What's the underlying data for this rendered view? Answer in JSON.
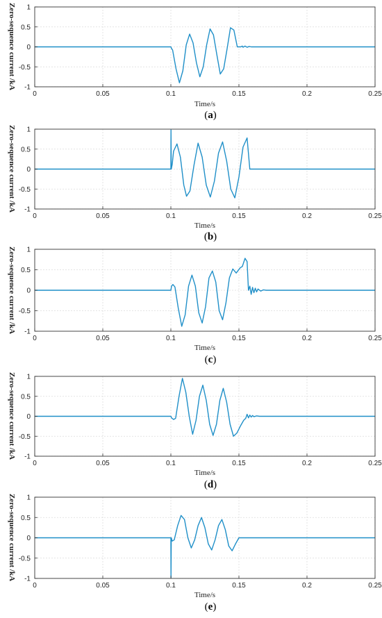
{
  "chart_data": [
    {
      "type": "line",
      "caption_letter": "a",
      "xlabel": "Time/s",
      "ylabel": "Zero-sequence current /kA",
      "xlim": [
        0,
        0.25
      ],
      "ylim": [
        -1,
        1
      ],
      "xticks": [
        "0",
        "0.05",
        "0.1",
        "0.15",
        "0.2",
        "0.25"
      ],
      "yticks": [
        "-1",
        "-0.5",
        "0",
        "0.5",
        "1"
      ],
      "grid": true,
      "color": "#1f8fc8",
      "series": [
        {
          "x": [
            0,
            0.1,
            0.1005,
            0.1013,
            0.1038,
            0.1063,
            0.1088,
            0.1113,
            0.1138,
            0.1163,
            0.1188,
            0.1213,
            0.1238,
            0.1263,
            0.1288,
            0.1313,
            0.1338,
            0.1363,
            0.1388,
            0.1413,
            0.1438,
            0.1463,
            0.1488,
            0.1513,
            0.1525,
            0.153,
            0.1545,
            0.156,
            0.1575,
            0.159,
            0.161,
            0.25
          ],
          "y": [
            0,
            0,
            -0.04,
            -0.08,
            -0.55,
            -0.9,
            -0.6,
            0.05,
            0.32,
            0.1,
            -0.4,
            -0.75,
            -0.5,
            0.05,
            0.45,
            0.3,
            -0.2,
            -0.68,
            -0.55,
            -0.05,
            0.48,
            0.42,
            0.0,
            0.0,
            0.02,
            -0.01,
            0.02,
            -0.01,
            0.01,
            0.0,
            0.0,
            0
          ]
        }
      ]
    },
    {
      "type": "line",
      "caption_letter": "b",
      "xlabel": "Time/s",
      "ylabel": "Zero-sequence current /kA",
      "xlim": [
        0,
        0.25
      ],
      "ylim": [
        -1,
        1
      ],
      "xticks": [
        "0",
        "0.05",
        "0.1",
        "0.15",
        "0.2",
        "0.25"
      ],
      "yticks": [
        "-1",
        "-0.5",
        "0",
        "0.5",
        "1"
      ],
      "grid": true,
      "color": "#1f8fc8",
      "series": [
        {
          "x": [
            0,
            0.1,
            0.1001,
            0.1003,
            0.101,
            0.102,
            0.1045,
            0.107,
            0.1095,
            0.1115,
            0.114,
            0.117,
            0.12,
            0.123,
            0.126,
            0.129,
            0.132,
            0.135,
            0.138,
            0.141,
            0.144,
            0.147,
            0.15,
            0.153,
            0.156,
            0.158,
            0.25
          ],
          "y": [
            0,
            0,
            0.98,
            0.0,
            0.12,
            0.45,
            0.63,
            0.3,
            -0.4,
            -0.68,
            -0.55,
            0.1,
            0.65,
            0.3,
            -0.4,
            -0.7,
            -0.3,
            0.4,
            0.68,
            0.2,
            -0.5,
            -0.72,
            -0.2,
            0.55,
            0.78,
            0.0,
            0
          ]
        }
      ]
    },
    {
      "type": "line",
      "caption_letter": "c",
      "xlabel": "Time/s",
      "ylabel": "Zero-sequence current /kA",
      "xlim": [
        0,
        0.25
      ],
      "ylim": [
        -1,
        1
      ],
      "xticks": [
        "0",
        "0.05",
        "0.1",
        "0.15",
        "0.2",
        "0.25"
      ],
      "yticks": [
        "-1",
        "-0.5",
        "0",
        "0.5",
        "1"
      ],
      "grid": true,
      "color": "#1f8fc8",
      "series": [
        {
          "x": [
            0,
            0.1,
            0.1005,
            0.1015,
            0.103,
            0.1055,
            0.108,
            0.1105,
            0.113,
            0.1155,
            0.118,
            0.1205,
            0.123,
            0.1255,
            0.128,
            0.1305,
            0.133,
            0.1355,
            0.138,
            0.1405,
            0.143,
            0.1455,
            0.148,
            0.151,
            0.1525,
            0.1545,
            0.156,
            0.157,
            0.158,
            0.159,
            0.16,
            0.161,
            0.162,
            0.163,
            0.164,
            0.166,
            0.168,
            0.17,
            0.25
          ],
          "y": [
            0,
            0,
            0.1,
            0.14,
            0.08,
            -0.45,
            -0.88,
            -0.6,
            0.1,
            0.37,
            0.1,
            -0.55,
            -0.8,
            -0.4,
            0.3,
            0.47,
            0.2,
            -0.5,
            -0.72,
            -0.3,
            0.3,
            0.52,
            0.42,
            0.55,
            0.58,
            0.78,
            0.7,
            0.0,
            0.1,
            -0.1,
            0.07,
            -0.06,
            0.05,
            -0.04,
            0.03,
            -0.02,
            0.01,
            0.0,
            0
          ]
        }
      ]
    },
    {
      "type": "line",
      "caption_letter": "d",
      "xlabel": "Time/s",
      "ylabel": "Zero-sequence current /kA",
      "xlim": [
        0,
        0.25
      ],
      "ylim": [
        -1,
        1
      ],
      "xticks": [
        "0",
        "0.05",
        "0.1",
        "0.15",
        "0.2",
        "0.25"
      ],
      "yticks": [
        "-1",
        "-0.5",
        "0",
        "0.5",
        "1"
      ],
      "grid": true,
      "color": "#1f8fc8",
      "series": [
        {
          "x": [
            0,
            0.1,
            0.1005,
            0.102,
            0.1035,
            0.106,
            0.1085,
            0.111,
            0.1135,
            0.116,
            0.1185,
            0.121,
            0.1235,
            0.126,
            0.1285,
            0.131,
            0.1335,
            0.136,
            0.1385,
            0.141,
            0.1435,
            0.146,
            0.1485,
            0.151,
            0.1535,
            0.155,
            0.156,
            0.157,
            0.158,
            0.159,
            0.16,
            0.161,
            0.163,
            0.165,
            0.25
          ],
          "y": [
            0,
            0,
            -0.04,
            -0.08,
            -0.05,
            0.5,
            0.95,
            0.6,
            0.0,
            -0.45,
            -0.1,
            0.5,
            0.78,
            0.4,
            -0.2,
            -0.48,
            -0.2,
            0.4,
            0.7,
            0.35,
            -0.2,
            -0.5,
            -0.42,
            -0.25,
            -0.1,
            -0.05,
            0.05,
            -0.04,
            0.03,
            -0.02,
            0.02,
            -0.01,
            0.01,
            0.0,
            0
          ]
        }
      ]
    },
    {
      "type": "line",
      "caption_letter": "e",
      "xlabel": "Time/s",
      "ylabel": "Zero-sequence current /kA",
      "xlim": [
        0,
        0.25
      ],
      "ylim": [
        -1,
        1
      ],
      "xticks": [
        "0",
        "0.05",
        "0.1",
        "0.15",
        "0.2",
        "0.25"
      ],
      "yticks": [
        "-1",
        "-0.5",
        "0",
        "0.5",
        "1"
      ],
      "grid": true,
      "color": "#1f8fc8",
      "series": [
        {
          "x": [
            0,
            0.1,
            0.1001,
            0.1003,
            0.101,
            0.1025,
            0.105,
            0.1075,
            0.11,
            0.1125,
            0.115,
            0.1175,
            0.12,
            0.1225,
            0.125,
            0.1275,
            0.13,
            0.1325,
            0.135,
            0.1375,
            0.14,
            0.1425,
            0.145,
            0.1475,
            0.15,
            0.1525,
            0.155,
            0.25
          ],
          "y": [
            0,
            0,
            -0.98,
            0.0,
            -0.08,
            -0.05,
            0.3,
            0.55,
            0.45,
            0.0,
            -0.25,
            -0.05,
            0.3,
            0.5,
            0.25,
            -0.15,
            -0.3,
            -0.05,
            0.3,
            0.45,
            0.2,
            -0.2,
            -0.32,
            -0.15,
            0.0,
            0.0,
            0.0,
            0
          ]
        }
      ]
    }
  ]
}
